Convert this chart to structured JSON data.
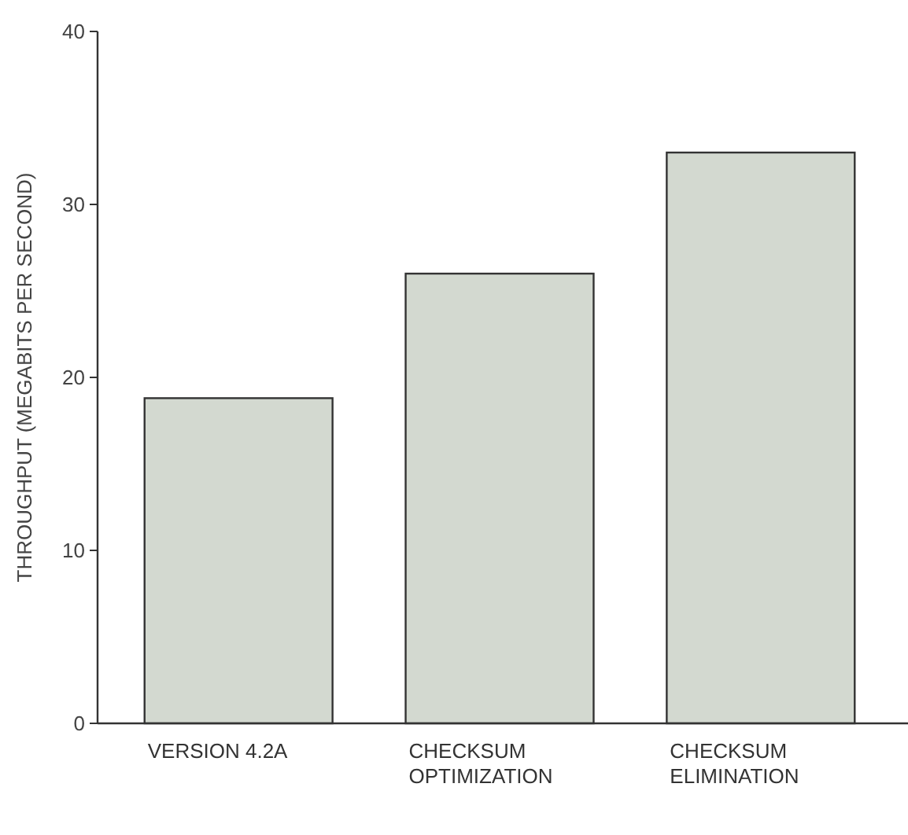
{
  "chart_data": {
    "type": "bar",
    "ylabel": "THROUGHPUT (MEGABITS PER SECOND)",
    "categories": [
      "VERSION 4.2A",
      "CHECKSUM\nOPTIMIZATION",
      "CHECKSUM\nELIMINATION"
    ],
    "values": [
      18.8,
      26,
      33
    ],
    "color": "#d3d9d0",
    "ylim": [
      0,
      40
    ],
    "yticks": [
      0,
      10,
      20,
      30,
      40
    ]
  }
}
